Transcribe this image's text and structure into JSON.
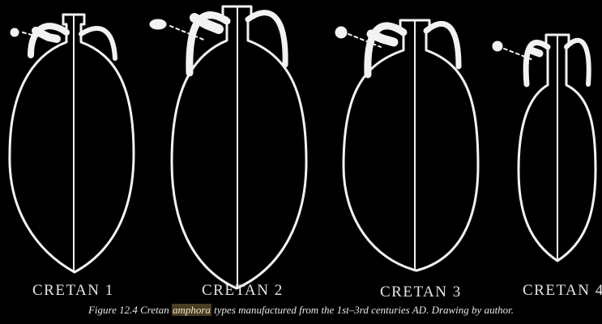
{
  "amphorae": [
    {
      "label": "Cretan 1"
    },
    {
      "label": "Cretan 2"
    },
    {
      "label": "Cretan 3"
    },
    {
      "label": "Cretan 4"
    }
  ],
  "caption": {
    "prefix": "Figure 12.4 Cretan ",
    "highlight": "amphora",
    "suffix": " types manufactured from the 1st–3rd centuries AD. Drawing by author."
  },
  "colors": {
    "background": "#000000",
    "stroke": "#f2f2f2",
    "highlight": "#4a3d22"
  }
}
